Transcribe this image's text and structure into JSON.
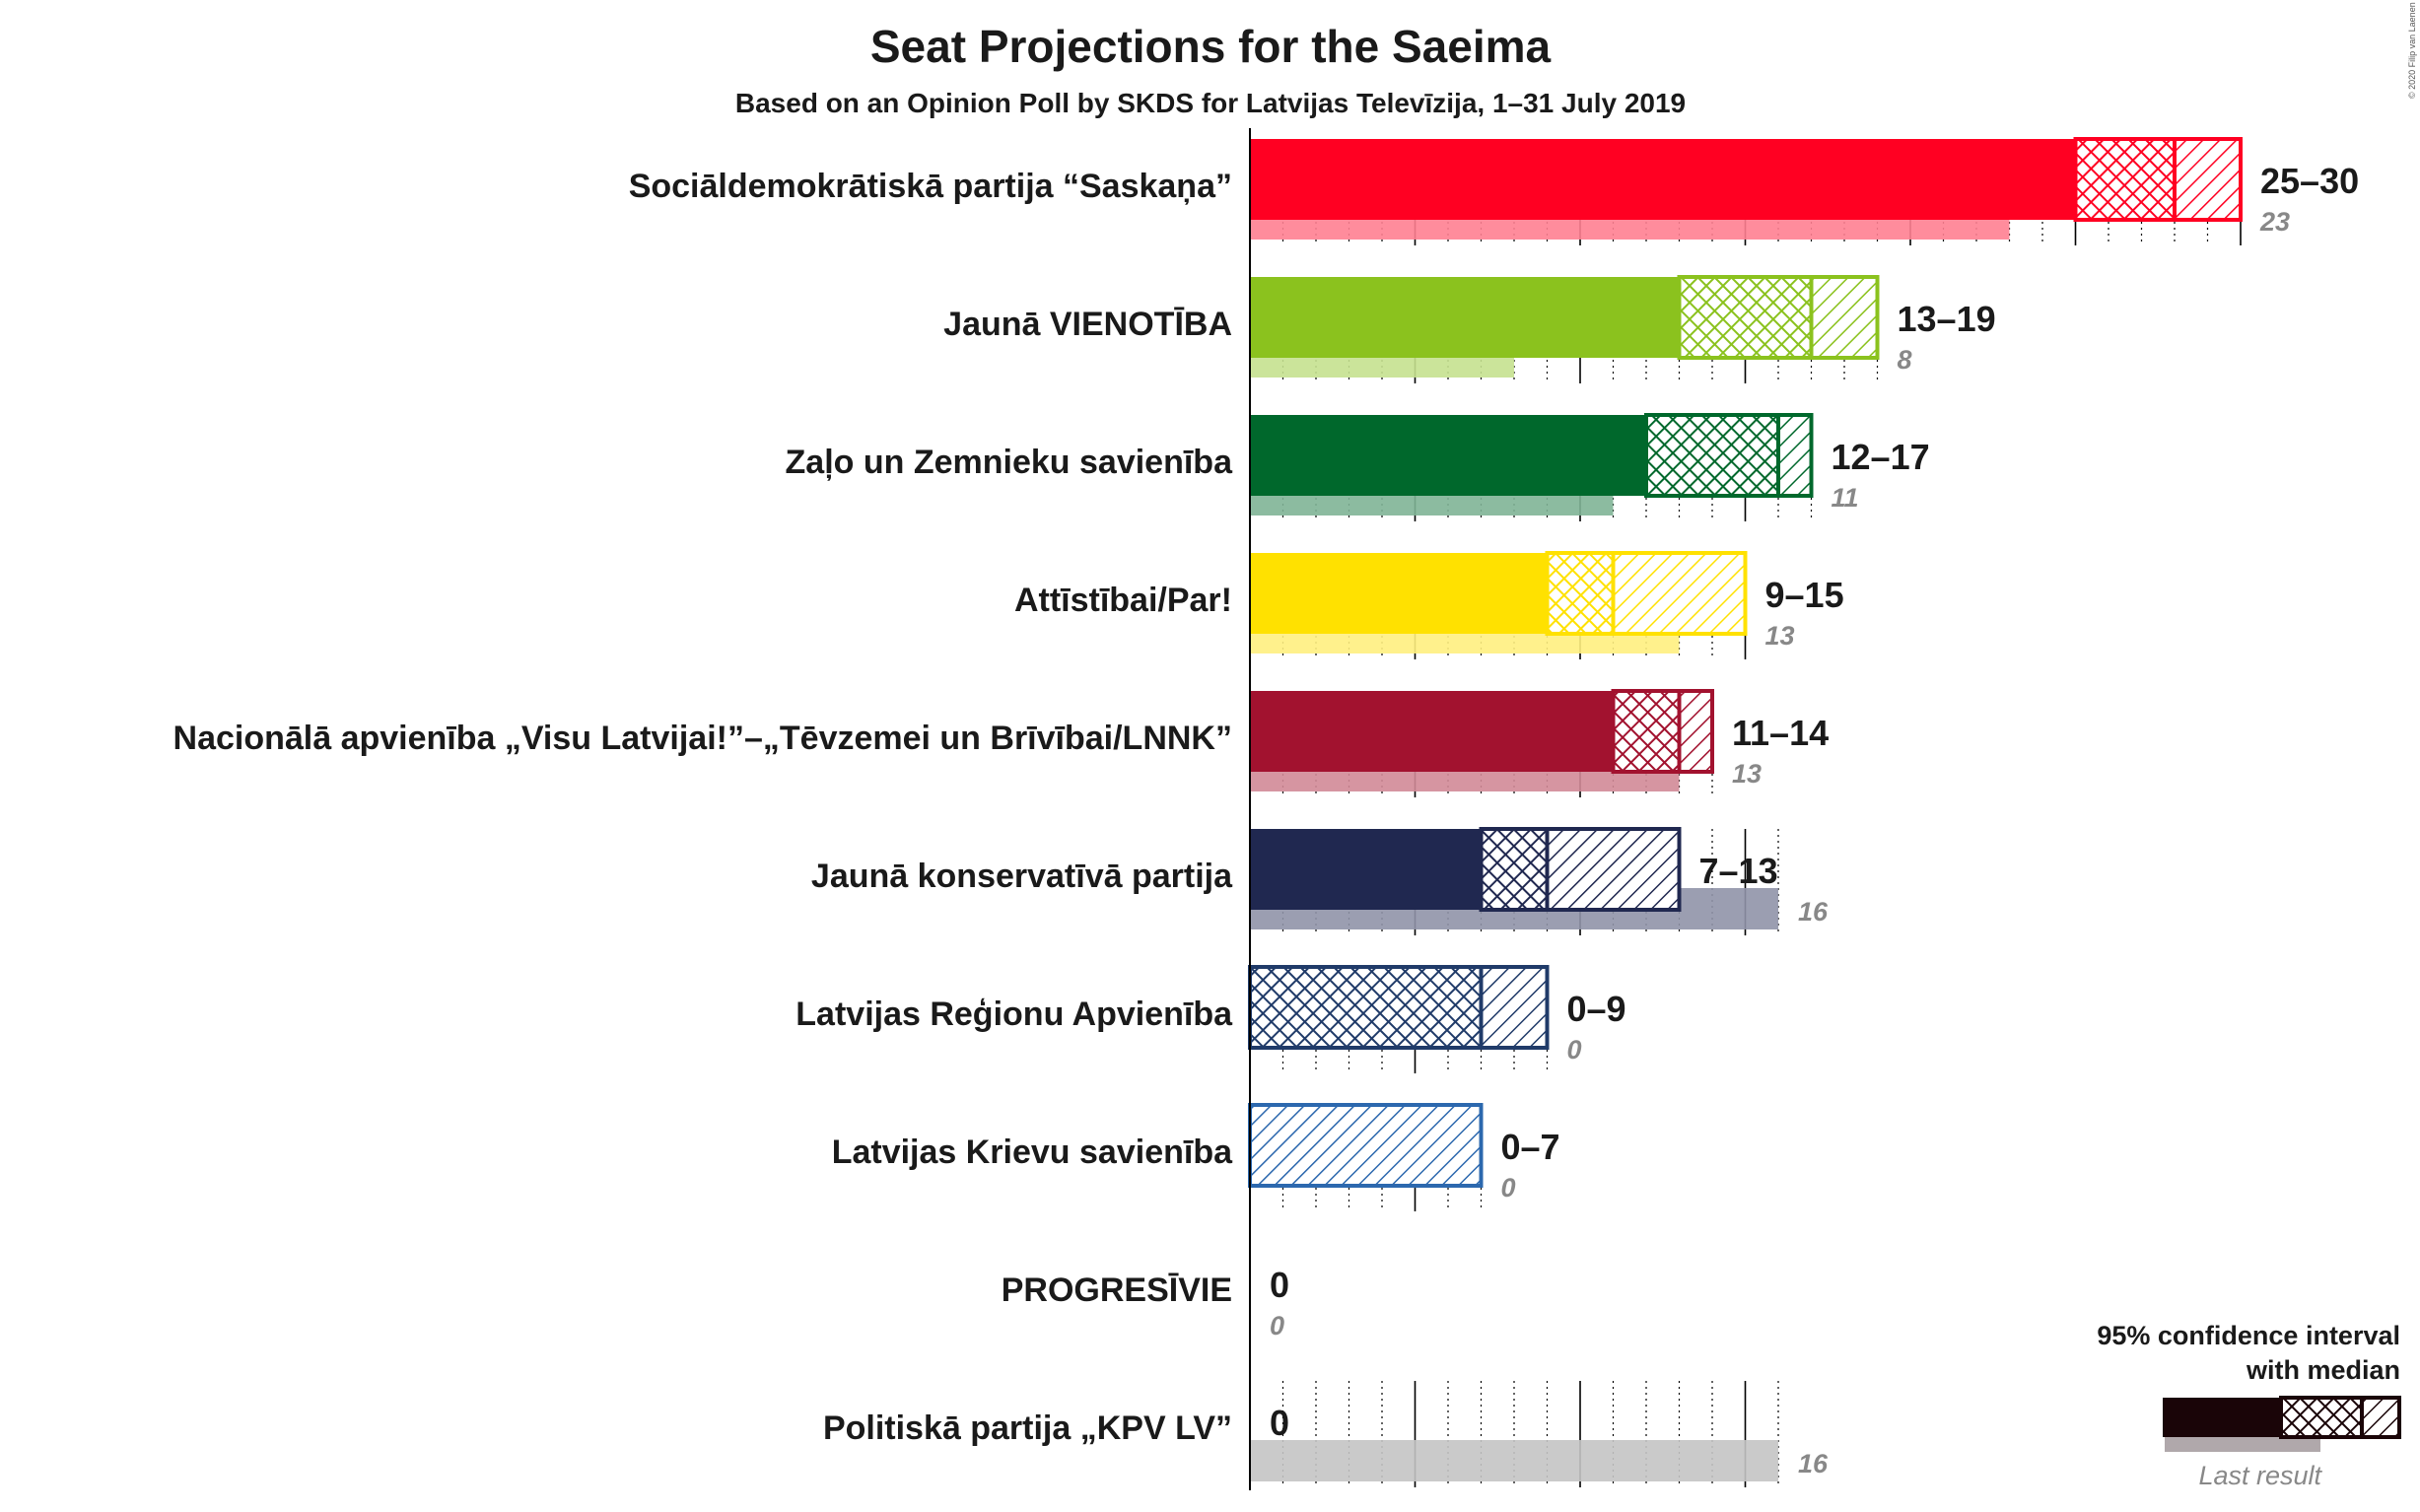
{
  "title": "Seat Projections for the Saeima",
  "subtitle": "Based on an Opinion Poll by SKDS for Latvijas Televīzija, 1–31 July 2019",
  "copyright": "© 2020 Filip van Laenen",
  "legend": {
    "title_line1": "95% confidence interval",
    "title_line2": "with median",
    "last_label": "Last result"
  },
  "chart_data": {
    "type": "bar",
    "orientation": "horizontal",
    "title": "Seat Projections for the Saeima",
    "subtitle": "Based on an Opinion Poll by SKDS for Latvijas Televīzija, 1–31 July 2019",
    "xlim": [
      0,
      30
    ],
    "parties": [
      {
        "name": "Sociāldemokrātiskā partija “Saskaņa”",
        "color": "#ff0022",
        "low": 25,
        "median": 28,
        "high": 30,
        "range_label": "25–30",
        "last": 23,
        "last_label": "23"
      },
      {
        "name": "Jaunā VIENOTĪBA",
        "color": "#8bc21e",
        "low": 13,
        "median": 17,
        "high": 19,
        "range_label": "13–19",
        "last": 8,
        "last_label": "8"
      },
      {
        "name": "Zaļo un Zemnieku savienība",
        "color": "#00682c",
        "low": 12,
        "median": 16,
        "high": 17,
        "range_label": "12–17",
        "last": 11,
        "last_label": "11"
      },
      {
        "name": "Attīstībai/Par!",
        "color": "#ffe100",
        "low": 9,
        "median": 11,
        "high": 15,
        "range_label": "9–15",
        "last": 13,
        "last_label": "13"
      },
      {
        "name": "Nacionālā apvienība „Visu Latvijai!”–„Tēvzemei un Brīvībai/LNNK”",
        "color": "#a2122f",
        "low": 11,
        "median": 13,
        "high": 14,
        "range_label": "11–14",
        "last": 13,
        "last_label": "13"
      },
      {
        "name": "Jaunā konservatīvā partija",
        "color": "#202850",
        "low": 7,
        "median": 9,
        "high": 13,
        "range_label": "7–13",
        "last": 16,
        "last_label": "16"
      },
      {
        "name": "Latvijas Reģionu Apvienība",
        "color": "#203b69",
        "low": 0,
        "median": 7,
        "high": 9,
        "range_label": "0–9",
        "last": 0,
        "last_label": "0"
      },
      {
        "name": "Latvijas Krievu savienība",
        "color": "#2c68ae",
        "low": 0,
        "median": 0,
        "high": 7,
        "range_label": "0–7",
        "last": 0,
        "last_label": "0"
      },
      {
        "name": "PROGRESĪVIE",
        "color": "#888888",
        "low": 0,
        "median": 0,
        "high": 0,
        "range_label": "0",
        "last": 0,
        "last_label": "0"
      },
      {
        "name": "Politiskā partija „KPV LV”",
        "color": "#888888",
        "low": 0,
        "median": 0,
        "high": 0,
        "range_label": "0",
        "last": 16,
        "last_label": "16"
      }
    ]
  }
}
